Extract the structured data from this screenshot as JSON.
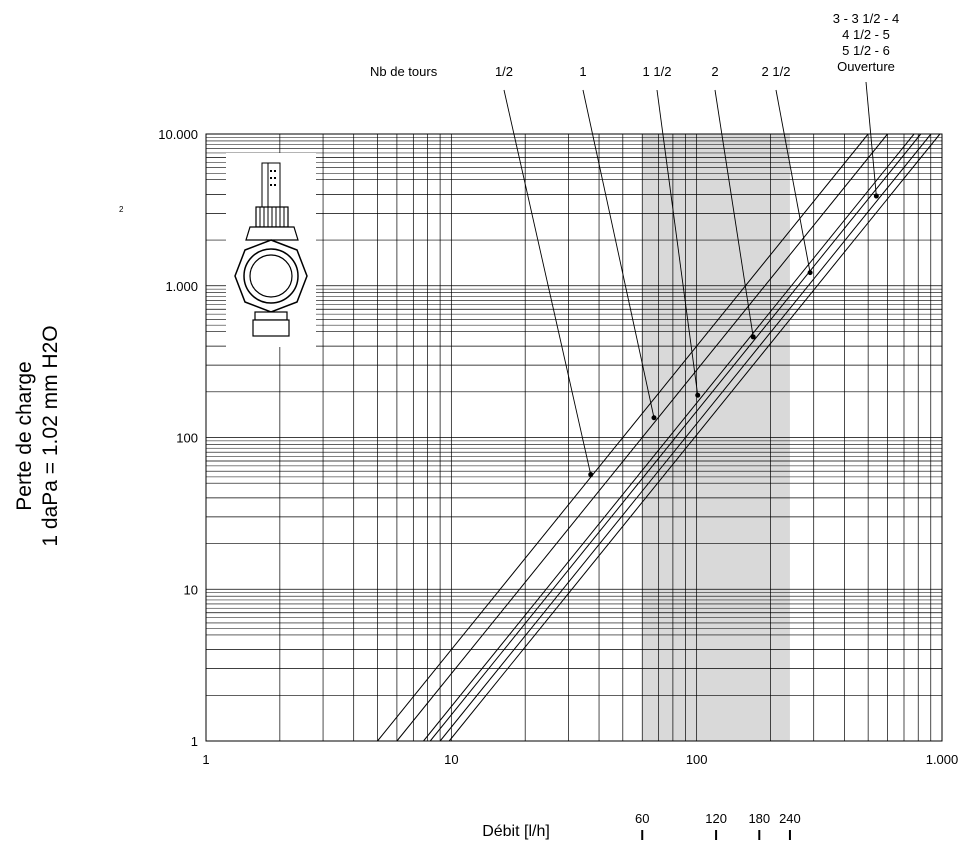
{
  "chart_data": {
    "type": "line",
    "scale": "log-log",
    "xlim": [
      1,
      1000
    ],
    "ylim": [
      1,
      10000
    ],
    "x_ticks": [
      {
        "value": 1,
        "label": "1"
      },
      {
        "value": 10,
        "label": "10"
      },
      {
        "value": 100,
        "label": "100"
      },
      {
        "value": 1000,
        "label": "1.000"
      }
    ],
    "y_ticks": [
      {
        "value": 1,
        "label": "1"
      },
      {
        "value": 10,
        "label": "10"
      },
      {
        "value": 100,
        "label": "100"
      },
      {
        "value": 1000,
        "label": "1.000"
      },
      {
        "value": 10000,
        "label": "10.000"
      }
    ],
    "ylabel_line1": "Perte de charge",
    "ylabel_line2": "1 daPa = 1.02 mm H2O",
    "xlabel": "Débit [l/h]",
    "superscript_note": "2",
    "grid": true,
    "shaded_x_range": [
      60,
      240
    ],
    "shade_color": "#d9d9d9",
    "line_color": "#000000",
    "header_label": "Nb de tours",
    "opening_label_lines": [
      "3 - 3 1/2 - 4",
      "4 1/2 - 5",
      "5 1/2 - 6",
      "Ouverture"
    ],
    "series": [
      {
        "name": "1/2",
        "x": [
          5,
          1000
        ],
        "y": [
          1,
          40000
        ],
        "marker": [
          37,
          57
        ]
      },
      {
        "name": "1",
        "x": [
          6,
          1000
        ],
        "y": [
          1,
          27800
        ],
        "marker": [
          67,
          135
        ]
      },
      {
        "name": "1 1/2",
        "x": [
          7.7,
          1000
        ],
        "y": [
          1,
          16900
        ],
        "marker": [
          101,
          190
        ]
      },
      {
        "name": "2",
        "x": [
          8.2,
          1000
        ],
        "y": [
          1,
          14900
        ],
        "marker": [
          170,
          460
        ]
      },
      {
        "name": "2 1/2",
        "x": [
          9,
          1000
        ],
        "y": [
          1,
          12300
        ],
        "marker": [
          290,
          1220
        ]
      },
      {
        "name": "3 - 3 1/2 - 4 / 4 1/2 - 5 / 5 1/2 - 6 Ouverture",
        "x": [
          9.8,
          1000
        ],
        "y": [
          1,
          10400
        ],
        "marker": [
          540,
          3900
        ]
      }
    ],
    "secondary_ticks": [
      {
        "value": 60,
        "label": "60"
      },
      {
        "value": 120,
        "label": "120"
      },
      {
        "value": 180,
        "label": "180"
      },
      {
        "value": 240,
        "label": "240"
      }
    ],
    "inset_image": "thermostatic-valve-body-icon"
  }
}
